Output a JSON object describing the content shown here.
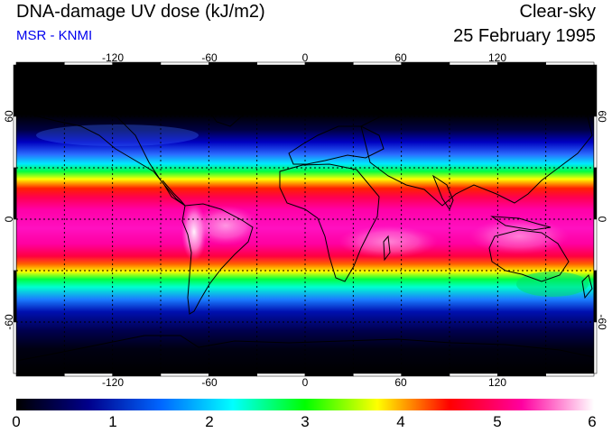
{
  "header": {
    "title": "DNA-damage UV dose (kJ/m2)",
    "source": "MSR - KNMI",
    "sky_condition": "Clear-sky",
    "date": "25 February 1995"
  },
  "map": {
    "projection": "equirectangular",
    "lon_range": [
      -180,
      180
    ],
    "lat_range": [
      -90,
      90
    ],
    "lon_tick_labels": [
      "-120",
      "-60",
      "0",
      "60",
      "120"
    ],
    "lat_tick_labels_left": [
      "60",
      "0",
      "-60"
    ],
    "lat_tick_labels_right": [
      "60",
      "0",
      "-60"
    ],
    "gridlines": true
  },
  "colorbar": {
    "tick_labels": [
      "0",
      "1",
      "2",
      "3",
      "4",
      "5",
      "6"
    ],
    "stops": [
      "#000000",
      "#00008b",
      "#0066ff",
      "#00ffff",
      "#00ff00",
      "#ffff00",
      "#ff0000",
      "#ff00a0",
      "#ffffff"
    ]
  }
}
